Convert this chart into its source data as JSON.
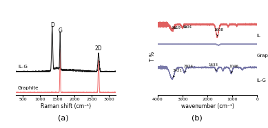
{
  "panel_a": {
    "xlabel": "Raman shift (cm⁻¹)",
    "graphite_color": "#f07070",
    "ilg_color": "#1a1a1a",
    "graphite_label": "Graphite",
    "ilg_label": "IL-G",
    "xlim": [
      300,
      3200
    ],
    "xticks": [
      500,
      1000,
      1500,
      2000,
      2500,
      3000
    ]
  },
  "panel_b": {
    "xlabel": "wavenumber (cm⁻¹)",
    "ylabel": "T %",
    "il_color": "#e06060",
    "graphite_color": "#9090b8",
    "ilg_color": "#7878a8",
    "il_label": "IL",
    "graphite_label": "Graphite",
    "ilg_label": "IL-G",
    "xlim": [
      4000,
      0
    ],
    "xticks": [
      4000,
      3000,
      2000,
      1000,
      0
    ]
  },
  "fig_label_a": "(a)",
  "fig_label_b": "(b)",
  "background": "#ffffff"
}
